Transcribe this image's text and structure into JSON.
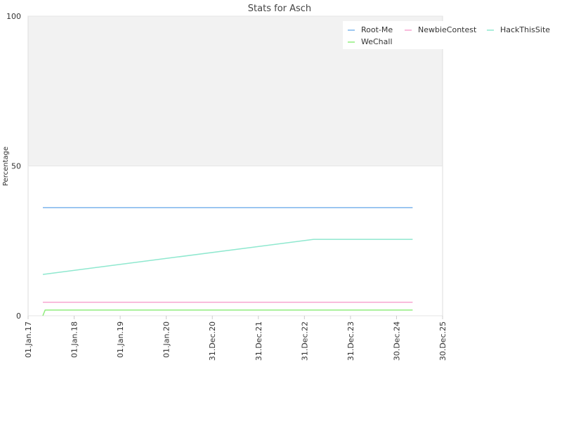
{
  "chart_data": {
    "type": "line",
    "title": "Stats for Asch",
    "y_label": "Percentage",
    "xlim": [
      2017,
      2026
    ],
    "ylim": [
      0,
      100
    ],
    "yticks": [
      0,
      50,
      100
    ],
    "xticks": [
      {
        "value": 2017,
        "label": "01.Jan.17"
      },
      {
        "value": 2018,
        "label": "01.Jan.18"
      },
      {
        "value": 2019,
        "label": "01.Jan.19"
      },
      {
        "value": 2020,
        "label": "01.Jan.20"
      },
      {
        "value": 2021,
        "label": "31.Dec.20"
      },
      {
        "value": 2022,
        "label": "31.Dec.21"
      },
      {
        "value": 2023,
        "label": "31.Dec.22"
      },
      {
        "value": 2024,
        "label": "31.Dec.23"
      },
      {
        "value": 2025,
        "label": "30.Dec.24"
      },
      {
        "value": 2026,
        "label": "30.Dec.25"
      }
    ],
    "plot_band": {
      "from": 50,
      "to": 100,
      "color": "#f2f2f2"
    },
    "legend": "top-right",
    "series": [
      {
        "name": "Root-Me",
        "color": "#7cb5ec",
        "x": [
          2017.32,
          2025.35
        ],
        "values": [
          36.1,
          36.1
        ]
      },
      {
        "name": "NewbieContest",
        "color": "#f7a5d0",
        "x": [
          2017.32,
          2025.35
        ],
        "values": [
          4.5,
          4.5
        ]
      },
      {
        "name": "HackThisSite",
        "color": "#8fe8cf",
        "x": [
          2017.32,
          2023.2,
          2025.35
        ],
        "values": [
          13.8,
          25.5,
          25.5
        ]
      },
      {
        "name": "WeChall",
        "color": "#90ed7d",
        "x": [
          2017.32,
          2017.37,
          2025.35
        ],
        "values": [
          0,
          1.9,
          1.9
        ]
      }
    ]
  }
}
